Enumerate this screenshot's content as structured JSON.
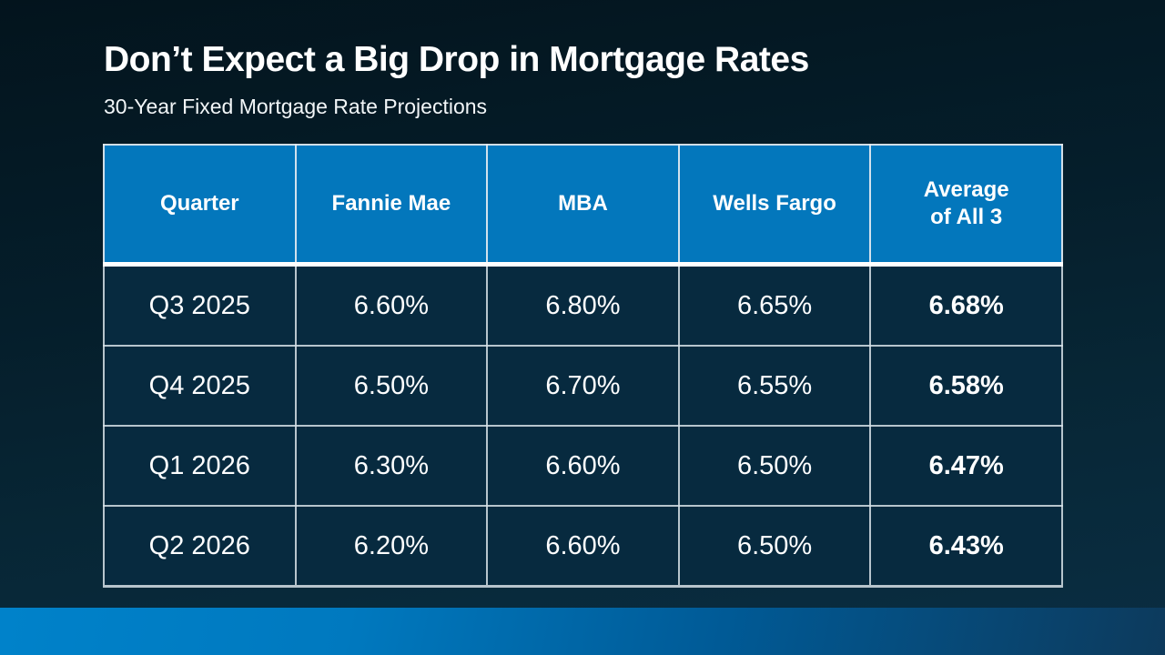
{
  "slide": {
    "title": "Don’t Expect a Big Drop in Mortgage Rates",
    "subtitle": "30-Year Fixed Mortgage Rate Projections"
  },
  "table": {
    "header": {
      "quarter": "Quarter",
      "fannie_mae": "Fannie Mae",
      "mba": "MBA",
      "wells_fargo": "Wells Fargo",
      "average_line1": "Average",
      "average_line2": "of All 3"
    },
    "rows": [
      [
        "Q3 2025",
        "6.60%",
        "6.80%",
        "6.65%",
        "6.68%"
      ],
      [
        "Q4 2025",
        "6.50%",
        "6.70%",
        "6.55%",
        "6.58%"
      ],
      [
        "Q1 2026",
        "6.30%",
        "6.60%",
        "6.50%",
        "6.47%"
      ],
      [
        "Q2 2026",
        "6.20%",
        "6.60%",
        "6.50%",
        "6.43%"
      ]
    ]
  },
  "colors": {
    "header_fill": "#0377BC",
    "cell_fill": "#072A3F",
    "accent_bar_left": "#0080C8",
    "accent_bar_right": "#0D3A5C",
    "background_top": "#03141D",
    "background_bottom": "#0A2E43"
  },
  "chart_data": {
    "type": "table",
    "title": "Don’t Expect a Big Drop in Mortgage Rates",
    "subtitle": "30-Year Fixed Mortgage Rate Projections",
    "columns": [
      "Quarter",
      "Fannie Mae",
      "MBA",
      "Wells Fargo",
      "Average of All 3"
    ],
    "rows": [
      [
        "Q3 2025",
        "6.60%",
        "6.80%",
        "6.65%",
        "6.68%"
      ],
      [
        "Q4 2025",
        "6.50%",
        "6.70%",
        "6.55%",
        "6.58%"
      ],
      [
        "Q1 2026",
        "6.30%",
        "6.60%",
        "6.50%",
        "6.47%"
      ],
      [
        "Q2 2026",
        "6.20%",
        "6.60%",
        "6.50%",
        "6.43%"
      ]
    ]
  }
}
